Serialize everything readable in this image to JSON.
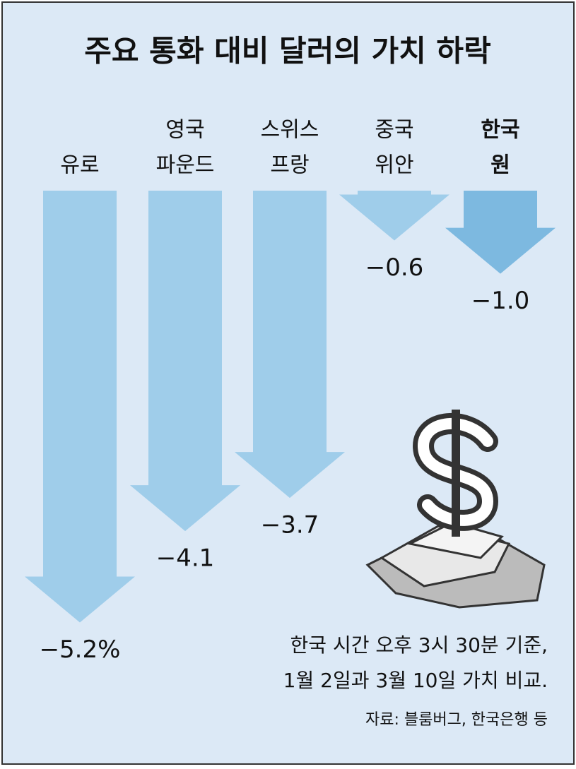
{
  "chart_data": {
    "type": "arrow",
    "title": "주요 통화 대비 달러의 가치 하락",
    "categories": [
      [
        "유로"
      ],
      [
        "영국",
        "파운드"
      ],
      [
        "스위스",
        "프랑"
      ],
      [
        "중국",
        "위안"
      ],
      [
        "한국",
        "원"
      ]
    ],
    "values": [
      -5.2,
      -4.1,
      -3.7,
      -0.6,
      -1.0
    ],
    "value_labels": [
      "−5.2%",
      "−4.1",
      "−3.7",
      "−0.6",
      "−1.0"
    ],
    "colors": [
      "#9fcdea",
      "#9fcdea",
      "#9fcdea",
      "#9fcdea",
      "#7db9e0"
    ],
    "ylim": [
      -5.4,
      0
    ],
    "annotations": [
      "한국 시간 오후 3시 30분 기준,",
      "1월 2일과 3월 10일 가치 비교.",
      "자료: 블룸버그, 한국은행 등"
    ]
  }
}
